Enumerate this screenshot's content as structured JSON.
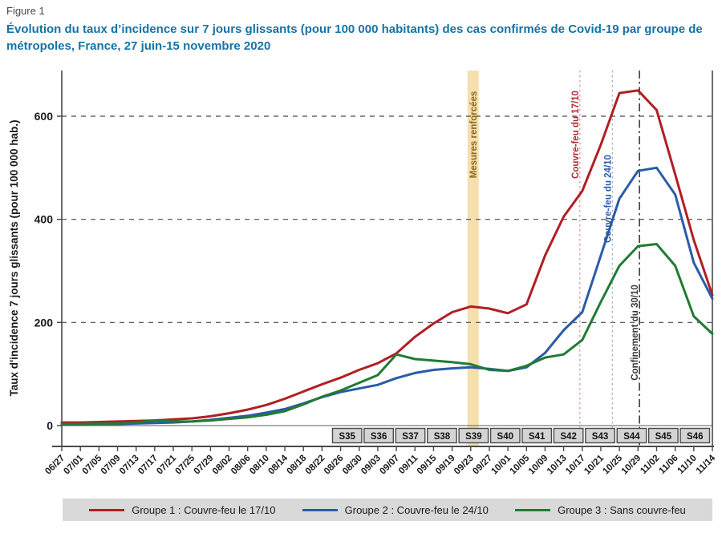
{
  "figure_label": "Figure 1",
  "title": "Évolution du taux d’incidence sur 7 jours glissants (pour 100 000 habitants) des cas confirmés de Covid-19 par groupe de métropoles, France, 27 juin-15 novembre 2020",
  "chart_data": {
    "type": "line",
    "title": "Évolution du taux d'incidence sur 7 jours glissants (pour 100 000 habitants) des cas confirmés de Covid-19 par groupe de métropoles, France, 27 juin-15 novembre 2020",
    "ylabel": "Taux d'incidence 7 jours glissants (pour 100 000 hab.)",
    "xlabel": "",
    "ylim": [
      0,
      690
    ],
    "yticks": [
      0,
      200,
      400,
      600
    ],
    "grid": "horizontal-dashed",
    "legend_position": "bottom",
    "x_tick_labels": [
      "06/27",
      "07/01",
      "07/05",
      "07/09",
      "07/13",
      "07/17",
      "07/21",
      "07/25",
      "07/29",
      "08/02",
      "08/06",
      "08/10",
      "08/14",
      "08/18",
      "08/22",
      "08/26",
      "08/30",
      "09/03",
      "09/07",
      "09/11",
      "09/15",
      "09/19",
      "09/23",
      "09/27",
      "10/01",
      "10/05",
      "10/09",
      "10/13",
      "10/17",
      "10/21",
      "10/25",
      "10/29",
      "11/02",
      "11/06",
      "11/10",
      "11/14"
    ],
    "week_labels": [
      "S35",
      "S36",
      "S37",
      "S38",
      "S39",
      "S40",
      "S41",
      "S42",
      "S43",
      "S44",
      "S45",
      "S46"
    ],
    "series": [
      {
        "name": "Groupe 1 : Couvre-feu le 17/10",
        "color": "#b01f24",
        "values": [
          6,
          6,
          7,
          8,
          9,
          10,
          12,
          14,
          18,
          24,
          31,
          40,
          52,
          66,
          80,
          93,
          108,
          121,
          140,
          172,
          198,
          220,
          231,
          227,
          218,
          235,
          330,
          405,
          455,
          545,
          645,
          650,
          612,
          487,
          360,
          253
        ]
      },
      {
        "name": "Groupe 2 : Couvre-feu le 24/10",
        "color": "#2b5ba8",
        "values": [
          2,
          2,
          3,
          3,
          4,
          5,
          6,
          8,
          11,
          15,
          19,
          25,
          32,
          43,
          55,
          65,
          72,
          79,
          92,
          102,
          108,
          111,
          113,
          110,
          106,
          113,
          141,
          185,
          220,
          330,
          440,
          494,
          500,
          448,
          316,
          246
        ]
      },
      {
        "name": "Groupe 3 : Sans couvre-feu",
        "color": "#217b33",
        "values": [
          3,
          3,
          4,
          4,
          6,
          10,
          8,
          8,
          10,
          13,
          16,
          21,
          28,
          41,
          56,
          68,
          83,
          98,
          138,
          129,
          126,
          123,
          119,
          108,
          106,
          116,
          132,
          138,
          166,
          240,
          310,
          348,
          352,
          310,
          212,
          178
        ]
      }
    ],
    "annotations": {
      "band": {
        "label": "Mesures renforcées",
        "date": "09/23",
        "color": "#f6dfae",
        "text_color": "#8a6a1f"
      },
      "vlines": [
        {
          "label": "Couvre-feu du 17/10",
          "date": "10/17",
          "style": "dotted",
          "line_color": "#dd9a9a",
          "text_color": "#b02a30"
        },
        {
          "label": "Couvre-feu du 24/10",
          "date": "10/24",
          "style": "dotted",
          "line_color": "#a3b2cb",
          "text_color": "#2b5ba8"
        },
        {
          "label": "Confinement du 30/10",
          "date": "10/30",
          "style": "dashdot",
          "line_color": "#3a3a3a",
          "text_color": "#3a3a3a"
        }
      ]
    }
  }
}
